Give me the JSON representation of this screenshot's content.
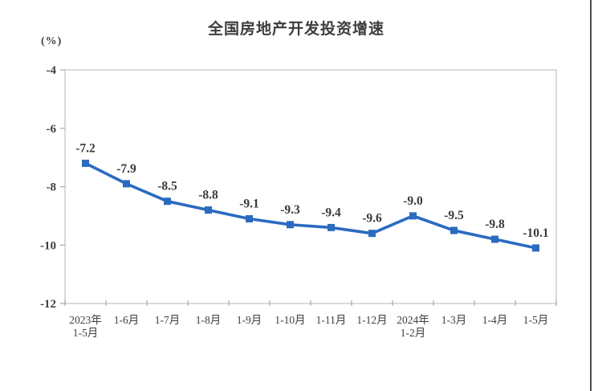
{
  "window": {
    "background_color": "#ffffff",
    "right_edge_line_color": "#4c4c4c"
  },
  "chart": {
    "line_color": "#2a6bbf",
    "marker_color": "#2a6bbf",
    "box_border_color": "#c6c6c6",
    "tick_color": "#a8a8a8",
    "axis_text_color": "#3f3f3f",
    "data_label_color": "#3a3a3a",
    "title_color": "#3d3d3d"
  },
  "chart_data": {
    "type": "line",
    "title": "全国房地产开发投资增速",
    "ylabel": "(%)",
    "xlabel": "",
    "categories": [
      "2023年\n1-5月",
      "1-6月",
      "1-7月",
      "1-8月",
      "1-9月",
      "1-10月",
      "1-11月",
      "1-12月",
      "2024年\n1-2月",
      "1-3月",
      "1-4月",
      "1-5月"
    ],
    "values": [
      -7.2,
      -7.9,
      -8.5,
      -8.8,
      -9.1,
      -9.3,
      -9.4,
      -9.6,
      -9.0,
      -9.5,
      -9.8,
      -10.1
    ],
    "data_labels": [
      "-7.2",
      "-7.9",
      "-8.5",
      "-8.8",
      "-9.1",
      "-9.3",
      "-9.4",
      "-9.6",
      "-9.0",
      "-9.5",
      "-9.8",
      "-10.1"
    ],
    "ylim": [
      -12,
      -4
    ],
    "yticks": [
      -4,
      -6,
      -8,
      -10,
      -12
    ],
    "grid": false,
    "legend": "none",
    "marker": "square"
  }
}
